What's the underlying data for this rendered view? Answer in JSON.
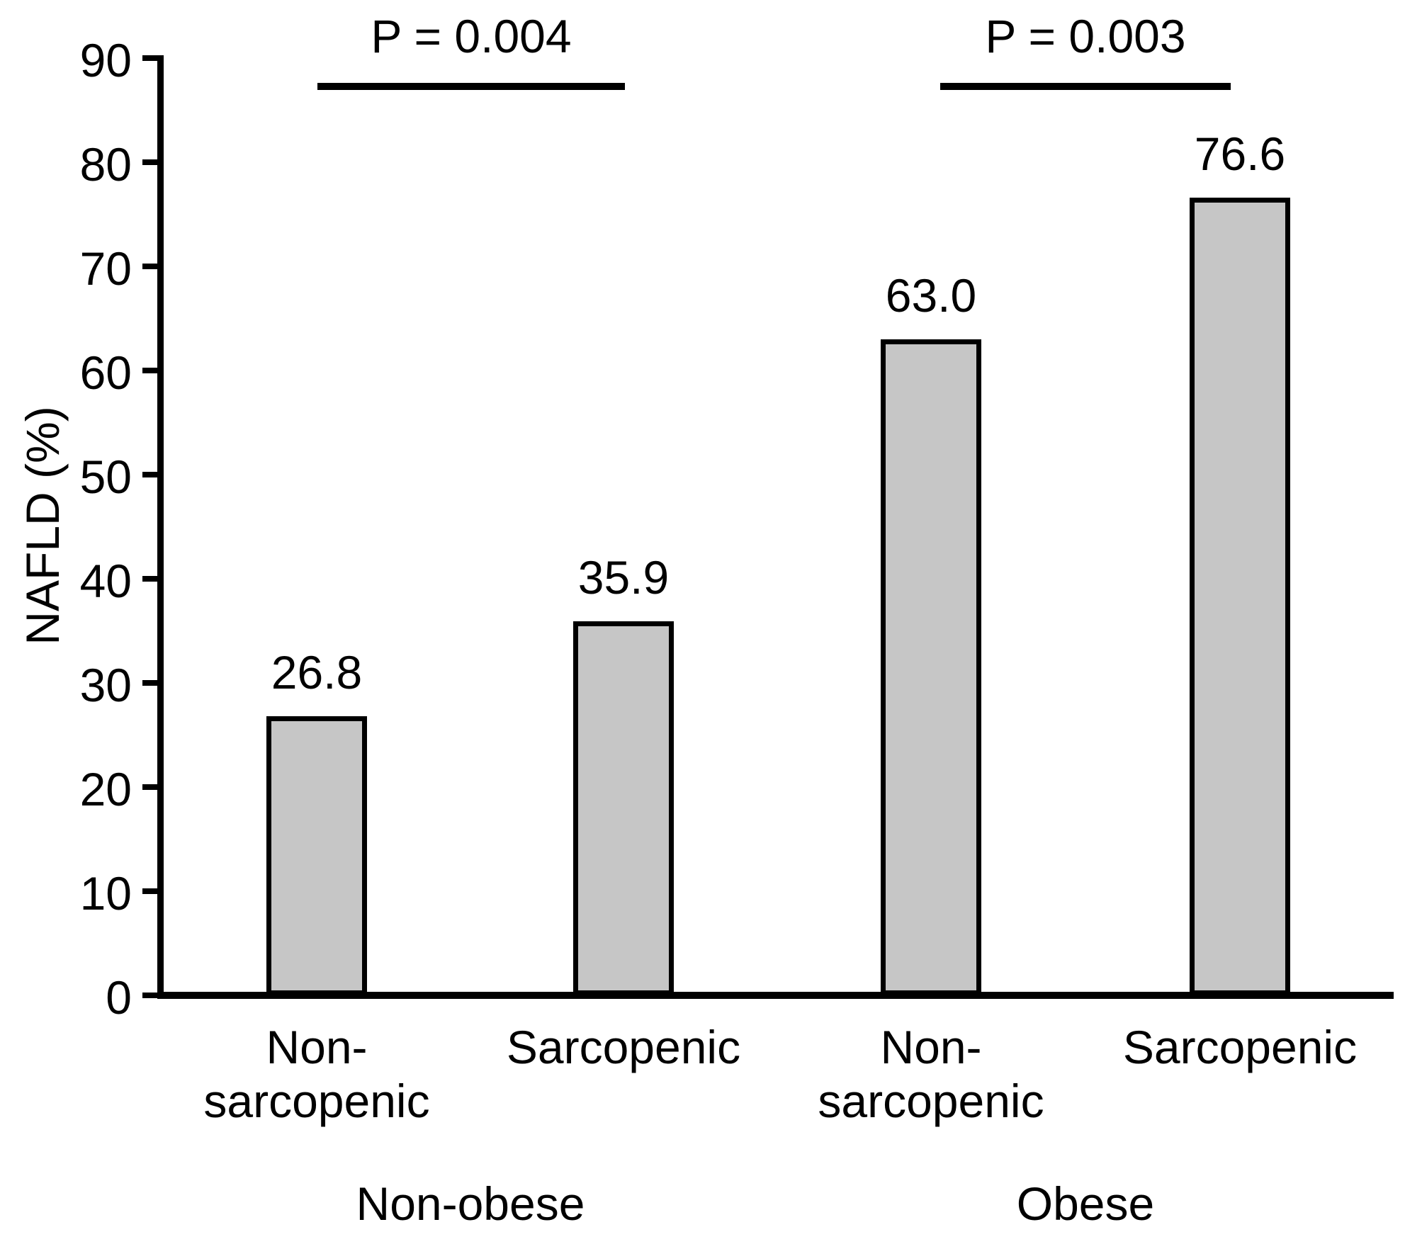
{
  "chart_data": {
    "type": "bar",
    "title": "",
    "xlabel": "",
    "ylabel": "NAFLD (%)",
    "ylim": [
      0,
      90
    ],
    "yticks": [
      0,
      10,
      20,
      30,
      40,
      50,
      60,
      70,
      80,
      90
    ],
    "grid": "off",
    "legend": "none",
    "categories": [
      "Non-sarcopenic",
      "Sarcopenic",
      "Non-sarcopenic",
      "Sarcopenic"
    ],
    "values": [
      26.8,
      35.9,
      63.0,
      76.6
    ],
    "bars": [
      {
        "group": "Non-obese",
        "category_lines": [
          "Non-",
          "sarcopenic"
        ],
        "value": 26.8,
        "value_label": "26.8"
      },
      {
        "group": "Non-obese",
        "category_lines": [
          "Sarcopenic"
        ],
        "value": 35.9,
        "value_label": "35.9"
      },
      {
        "group": "Obese",
        "category_lines": [
          "Non-",
          "sarcopenic"
        ],
        "value": 63.0,
        "value_label": "63.0"
      },
      {
        "group": "Obese",
        "category_lines": [
          "Sarcopenic"
        ],
        "value": 76.6,
        "value_label": "76.6"
      }
    ],
    "group_labels": [
      "Non-obese",
      "Obese"
    ],
    "significance": [
      {
        "label": "P = 0.004",
        "bars": [
          0,
          1
        ]
      },
      {
        "label": "P = 0.003",
        "bars": [
          2,
          3
        ]
      }
    ],
    "colors": {
      "bar_fill": "#c6c6c6",
      "bar_border": "#000000",
      "axis": "#000000",
      "text": "#000000",
      "background": "#ffffff"
    }
  }
}
